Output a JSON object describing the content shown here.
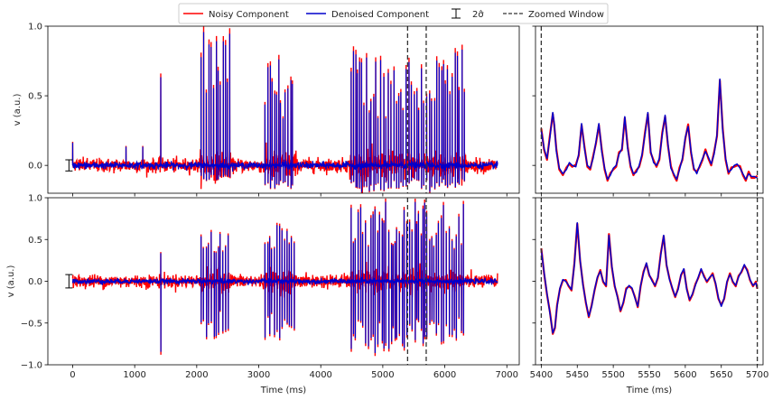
{
  "colors": {
    "noisy": "#ff0000",
    "denoised": "#0000cc",
    "zoom_window": "#333333",
    "errorbar": "#000000",
    "axes": "#000000"
  },
  "legend": {
    "entries": [
      {
        "label": "Noisy Component",
        "style": "solid",
        "color": "#ff0000"
      },
      {
        "label": "Denoised Component",
        "style": "solid",
        "color": "#0000cc"
      },
      {
        "label": "2σ̂",
        "style": "errorbar",
        "color": "#000000"
      },
      {
        "label": "Zoomed Window",
        "style": "dashed",
        "color": "#333333"
      }
    ],
    "placement": "top-center"
  },
  "chart_data": [
    {
      "id": "top-full",
      "type": "line",
      "ylabel": "v (a.u.)",
      "xlabel": "",
      "xlim": [
        -400,
        7200
      ],
      "ylim": [
        -0.2,
        1.0
      ],
      "xticks": [
        0,
        1000,
        2000,
        3000,
        4000,
        5000,
        6000,
        7000
      ],
      "xtick_labels_visible": false,
      "yticks": [
        0.0,
        0.5,
        1.0
      ],
      "ytick_labels": [
        "0.0",
        "0.5",
        "1.0"
      ],
      "zoom_window_lines_x": [
        5400,
        5700
      ],
      "errorbar": {
        "x": -60,
        "center": 0.0,
        "half_width": 0.04
      },
      "series": [
        {
          "name": "Noisy Component",
          "color": "#ff0000",
          "noise_sd": 0.02,
          "base_sd": 0.025,
          "extra": 0.025
        },
        {
          "name": "Denoised Component",
          "color": "#0000cc",
          "noise_sd": 0.006,
          "base_sd": 0.012,
          "extra": 0.0
        }
      ],
      "signal": {
        "x_start": 0,
        "x_end": 6850,
        "baseline": 0.0,
        "bursts": [
          {
            "start": 0,
            "end": 0,
            "amp_min": 0.17,
            "amp_max": 0.17,
            "neg": 0
          },
          {
            "start": 860,
            "end": 860,
            "amp_min": 0.14,
            "amp_max": 0.14,
            "neg": 0
          },
          {
            "start": 1130,
            "end": 1130,
            "amp_min": 0.14,
            "amp_max": 0.14,
            "neg": 0
          },
          {
            "start": 1420,
            "end": 1420,
            "amp_min": 0.66,
            "amp_max": 0.66,
            "neg": 0
          },
          {
            "start": 2070,
            "end": 2540,
            "amp_min": 0.45,
            "amp_max": 1.0,
            "neg": 0.12
          },
          {
            "start": 3100,
            "end": 3580,
            "amp_min": 0.35,
            "amp_max": 0.82,
            "neg": 0.2
          },
          {
            "start": 4490,
            "end": 6320,
            "amp_min": 0.35,
            "amp_max": 0.88,
            "neg": 0.2
          }
        ]
      }
    },
    {
      "id": "top-zoom",
      "type": "line",
      "ylabel": "",
      "xlabel": "",
      "xlim": [
        5392,
        5708
      ],
      "ylim": [
        -0.2,
        1.0
      ],
      "xticks": [
        5400,
        5450,
        5500,
        5550,
        5600,
        5650,
        5700
      ],
      "xtick_labels_visible": false,
      "yticks": [
        0.0,
        0.5,
        1.0
      ],
      "ytick_labels_visible": false,
      "zoom_window_lines_x": [
        5400,
        5700
      ],
      "series": [
        {
          "name": "Noisy Component",
          "color": "#ff0000"
        },
        {
          "name": "Denoised Component",
          "color": "#0000cc"
        }
      ],
      "points": {
        "x": [
          5400,
          5404,
          5408,
          5412,
          5416,
          5418,
          5421,
          5425,
          5430,
          5435,
          5439,
          5443,
          5448,
          5452,
          5456,
          5460,
          5464,
          5468,
          5472,
          5476,
          5480,
          5484,
          5488,
          5492,
          5496,
          5500,
          5504,
          5508,
          5512,
          5516,
          5520,
          5524,
          5528,
          5532,
          5536,
          5540,
          5544,
          5548,
          5552,
          5556,
          5560,
          5564,
          5568,
          5572,
          5576,
          5580,
          5584,
          5588,
          5592,
          5596,
          5600,
          5604,
          5608,
          5612,
          5616,
          5620,
          5624,
          5628,
          5632,
          5636,
          5640,
          5644,
          5648,
          5652,
          5656,
          5660,
          5664,
          5668,
          5672,
          5676,
          5680,
          5684,
          5688,
          5692,
          5696,
          5700
        ],
        "y": [
          0.25,
          0.12,
          0.05,
          0.2,
          0.38,
          0.3,
          0.1,
          -0.02,
          -0.06,
          -0.03,
          0.02,
          0.0,
          -0.01,
          0.08,
          0.3,
          0.12,
          0.0,
          -0.02,
          0.05,
          0.17,
          0.3,
          0.1,
          -0.02,
          -0.1,
          -0.07,
          -0.02,
          0.0,
          0.08,
          0.12,
          0.35,
          0.12,
          0.0,
          -0.06,
          -0.05,
          0.0,
          0.08,
          0.22,
          0.38,
          0.1,
          0.02,
          0.0,
          0.05,
          0.22,
          0.36,
          0.15,
          -0.02,
          -0.06,
          -0.1,
          -0.03,
          0.05,
          0.2,
          0.28,
          0.1,
          -0.02,
          -0.06,
          0.0,
          0.05,
          0.1,
          0.06,
          0.01,
          0.08,
          0.22,
          0.62,
          0.25,
          0.05,
          -0.05,
          -0.03,
          0.0,
          0.01,
          -0.02,
          -0.06,
          -0.1,
          -0.06,
          -0.08,
          -0.08,
          -0.09
        ]
      }
    },
    {
      "id": "bottom-full",
      "type": "line",
      "ylabel": "v (a.u.)",
      "xlabel": "Time (ms)",
      "xlim": [
        -400,
        7200
      ],
      "ylim": [
        -1.0,
        1.0
      ],
      "xticks": [
        0,
        1000,
        2000,
        3000,
        4000,
        5000,
        6000,
        7000
      ],
      "xtick_labels": [
        "0",
        "1000",
        "2000",
        "3000",
        "4000",
        "5000",
        "6000",
        "7000"
      ],
      "yticks": [
        -1.0,
        -0.5,
        0.0,
        0.5,
        1.0
      ],
      "ytick_labels": [
        "−1.0",
        "−0.5",
        "0.0",
        "0.5",
        "1.0"
      ],
      "zoom_window_lines_x": [
        5400,
        5700
      ],
      "errorbar": {
        "x": -60,
        "center": 0.0,
        "half_width": 0.08
      },
      "series": [
        {
          "name": "Noisy Component",
          "color": "#ff0000",
          "noise_sd": 0.03,
          "base_sd": 0.04,
          "extra": 0.025
        },
        {
          "name": "Denoised Component",
          "color": "#0000cc",
          "noise_sd": 0.008,
          "base_sd": 0.015,
          "extra": 0.0
        }
      ],
      "signal": {
        "x_start": 0,
        "x_end": 6850,
        "baseline": 0.0,
        "bursts": [
          {
            "start": 1420,
            "end": 1420,
            "amp_min": 0.35,
            "amp_max": 0.35,
            "neg": 0.88
          },
          {
            "start": 2070,
            "end": 2540,
            "amp_min": 0.35,
            "amp_max": 0.62,
            "neg": 0.72
          },
          {
            "start": 3100,
            "end": 3580,
            "amp_min": 0.38,
            "amp_max": 0.72,
            "neg": 0.72
          },
          {
            "start": 4490,
            "end": 6320,
            "amp_min": 0.38,
            "amp_max": 1.0,
            "neg": 0.9
          }
        ]
      }
    },
    {
      "id": "bottom-zoom",
      "type": "line",
      "ylabel": "",
      "xlabel": "Time (ms)",
      "xlim": [
        5392,
        5708
      ],
      "ylim": [
        -1.0,
        1.0
      ],
      "xticks": [
        5400,
        5450,
        5500,
        5550,
        5600,
        5650,
        5700
      ],
      "xtick_labels": [
        "5400",
        "5450",
        "5500",
        "5550",
        "5600",
        "5650",
        "5700"
      ],
      "yticks": [
        -1.0,
        -0.5,
        0.0,
        0.5,
        1.0
      ],
      "ytick_labels_visible": false,
      "zoom_window_lines_x": [
        5400,
        5700
      ],
      "series": [
        {
          "name": "Noisy Component",
          "color": "#ff0000"
        },
        {
          "name": "Denoised Component",
          "color": "#0000cc"
        }
      ],
      "points": {
        "x": [
          5400,
          5404,
          5408,
          5412,
          5416,
          5419,
          5422,
          5426,
          5430,
          5434,
          5438,
          5442,
          5446,
          5450,
          5454,
          5458,
          5462,
          5466,
          5470,
          5474,
          5478,
          5482,
          5486,
          5490,
          5494,
          5498,
          5502,
          5506,
          5510,
          5514,
          5518,
          5522,
          5526,
          5530,
          5534,
          5538,
          5542,
          5546,
          5550,
          5554,
          5558,
          5562,
          5566,
          5570,
          5574,
          5578,
          5582,
          5586,
          5590,
          5594,
          5598,
          5602,
          5606,
          5610,
          5614,
          5618,
          5622,
          5626,
          5630,
          5634,
          5638,
          5642,
          5646,
          5650,
          5654,
          5658,
          5662,
          5666,
          5670,
          5674,
          5678,
          5682,
          5686,
          5690,
          5694,
          5698,
          5700
        ],
        "y": [
          0.38,
          0.1,
          -0.15,
          -0.38,
          -0.62,
          -0.55,
          -0.3,
          -0.08,
          0.02,
          0.0,
          -0.05,
          -0.1,
          0.2,
          0.7,
          0.25,
          -0.05,
          -0.25,
          -0.42,
          -0.3,
          -0.1,
          0.05,
          0.12,
          0.0,
          -0.05,
          0.55,
          0.18,
          -0.05,
          -0.2,
          -0.35,
          -0.25,
          -0.1,
          -0.05,
          -0.08,
          -0.2,
          -0.3,
          -0.05,
          0.1,
          0.22,
          0.08,
          0.0,
          -0.05,
          0.05,
          0.32,
          0.55,
          0.2,
          0.02,
          -0.08,
          -0.18,
          -0.1,
          0.08,
          0.15,
          -0.1,
          -0.22,
          -0.15,
          -0.05,
          0.05,
          0.15,
          0.05,
          0.0,
          0.05,
          0.08,
          -0.02,
          -0.2,
          -0.3,
          -0.2,
          0.0,
          0.08,
          0.0,
          -0.05,
          0.05,
          0.12,
          0.2,
          0.12,
          0.02,
          -0.05,
          -0.02,
          -0.08
        ]
      }
    }
  ]
}
